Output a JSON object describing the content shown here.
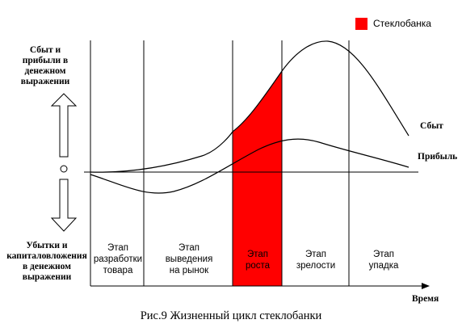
{
  "legend": {
    "label": "Стеклобанка",
    "color": "#ff0000"
  },
  "y_axis_top_label": "Сбыт и прибыли в денежном выражении",
  "y_axis_bottom_label": "Убытки и капиталовложения в денежном выражении",
  "x_axis_label": "Время",
  "curve_labels": {
    "sales": "Сбыт",
    "profit": "Прибыль"
  },
  "stages": [
    {
      "label": "Этап\nразработки\nтовара"
    },
    {
      "label": "Этап\nвыведения\nна рынок"
    },
    {
      "label": "Этап\nроста"
    },
    {
      "label": "Этап\nзрелости"
    },
    {
      "label": "Этап\nупадка"
    }
  ],
  "highlighted_stage": 2,
  "caption": "Рис.9 Жизненный цикл стеклобанки"
}
